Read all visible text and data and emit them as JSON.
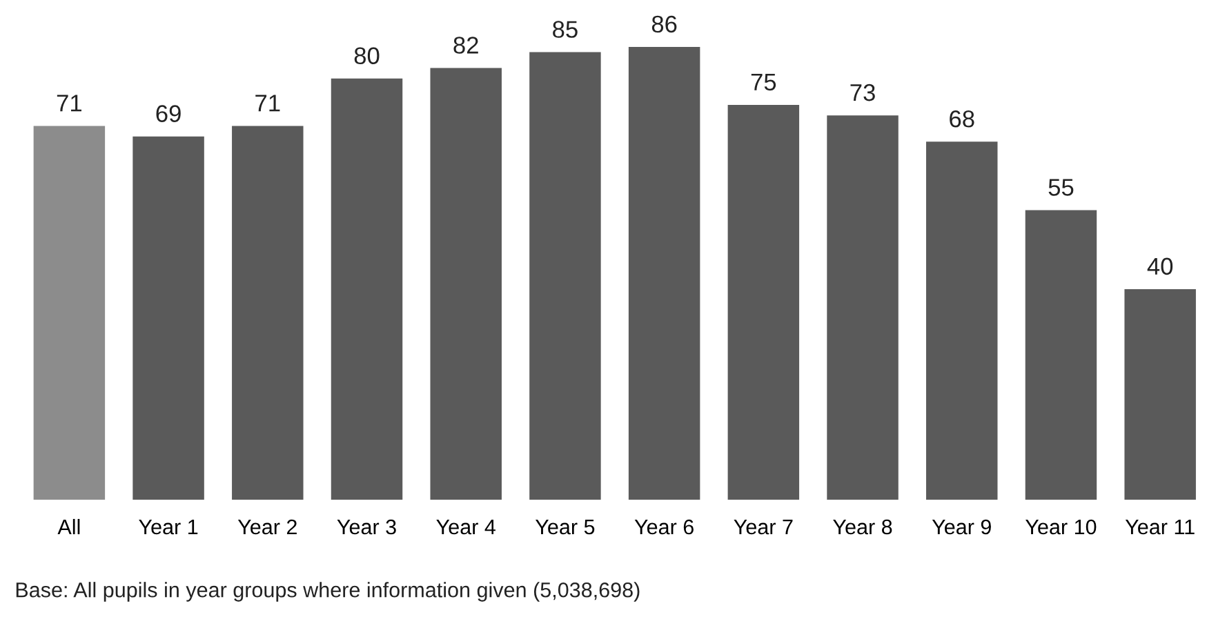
{
  "chart_data": {
    "type": "bar",
    "categories": [
      "All",
      "Year 1",
      "Year 2",
      "Year 3",
      "Year 4",
      "Year 5",
      "Year 6",
      "Year 7",
      "Year 8",
      "Year 9",
      "Year 10",
      "Year 11"
    ],
    "values": [
      71,
      69,
      71,
      80,
      82,
      85,
      86,
      75,
      73,
      68,
      55,
      40
    ],
    "colors": [
      "#8c8c8c",
      "#5a5a5a",
      "#5a5a5a",
      "#5a5a5a",
      "#5a5a5a",
      "#5a5a5a",
      "#5a5a5a",
      "#5a5a5a",
      "#5a5a5a",
      "#5a5a5a",
      "#5a5a5a",
      "#5a5a5a"
    ],
    "data_labels": true,
    "grid": false,
    "legend": false,
    "tick_labels": "x",
    "annotations": [
      "Base: All pupils in year groups where information given (5,038,698)"
    ]
  }
}
